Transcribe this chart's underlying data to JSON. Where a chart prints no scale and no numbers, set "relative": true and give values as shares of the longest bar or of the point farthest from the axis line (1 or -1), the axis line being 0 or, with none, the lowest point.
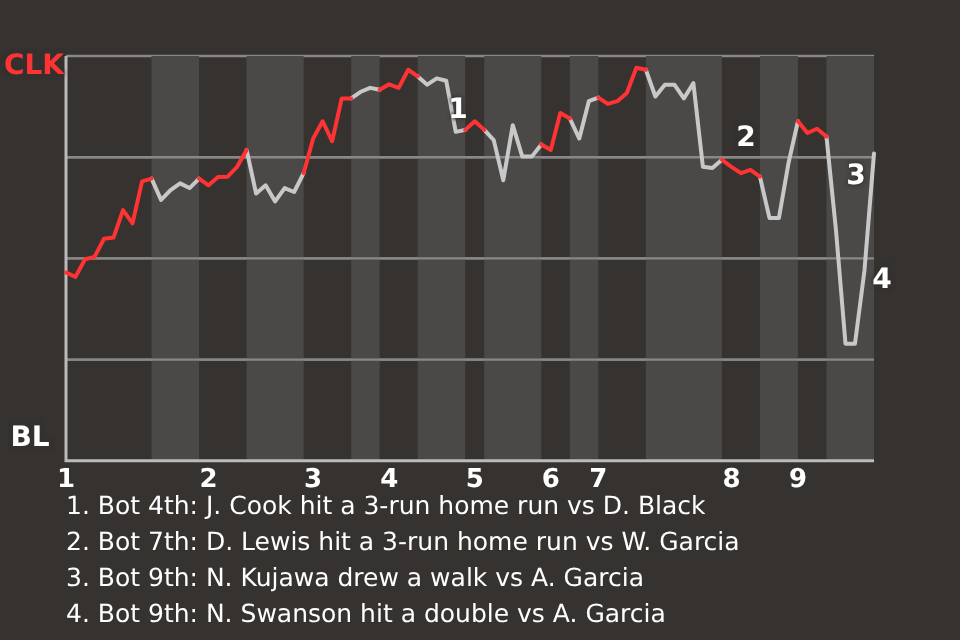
{
  "chart_data": {
    "type": "line",
    "relative": true,
    "categories": [
      "1",
      null,
      null,
      null,
      null,
      null,
      null,
      null,
      null,
      null,
      null,
      null,
      null,
      null,
      null,
      "2",
      null,
      null,
      null,
      null,
      null,
      null,
      null,
      null,
      null,
      null,
      "3",
      null,
      null,
      null,
      null,
      null,
      null,
      null,
      "4",
      null,
      null,
      null,
      null,
      null,
      null,
      null,
      null,
      "5",
      null,
      null,
      null,
      null,
      null,
      null,
      null,
      "6",
      null,
      null,
      null,
      null,
      "7",
      null,
      null,
      null,
      null,
      null,
      null,
      null,
      null,
      null,
      null,
      null,
      null,
      null,
      "8",
      null,
      null,
      null,
      null,
      null,
      null,
      "9",
      null,
      null,
      null,
      null,
      null,
      null,
      null,
      null
    ],
    "grid": "y",
    "legend": false,
    "marker": "none",
    "line_style": "solid",
    "series": [
      {
        "color": "#ff3333",
        "values": [
          0.479,
          0.468,
          0.513,
          0.519,
          0.565,
          0.568,
          0.638,
          0.604,
          0.711,
          0.718,
          null,
          null,
          null,
          null,
          0.718,
          0.701,
          0.722,
          0.723,
          0.748,
          0.791,
          null,
          null,
          null,
          null,
          null,
          0.732,
          0.82,
          0.864,
          0.813,
          0.922,
          0.922,
          null,
          null,
          0.944,
          0.958,
          0.949,
          0.995,
          0.978,
          null,
          null,
          null,
          null,
          0.842,
          0.864,
          0.842,
          null,
          null,
          null,
          null,
          null,
          0.805,
          0.791,
          0.885,
          0.871,
          null,
          null,
          0.924,
          0.908,
          0.915,
          0.936,
          1,
          0.995,
          null,
          null,
          null,
          null,
          null,
          null,
          null,
          0.766,
          0.748,
          0.732,
          0.74,
          0.723,
          null,
          null,
          null,
          0.864,
          0.834,
          0.845,
          0.825,
          null,
          null,
          null,
          null,
          null
        ]
      },
      {
        "color": "#c8c8c8",
        "values": [
          null,
          null,
          null,
          null,
          null,
          null,
          null,
          null,
          null,
          0.718,
          0.664,
          0.689,
          0.706,
          0.694,
          0.718,
          null,
          null,
          null,
          null,
          0.791,
          0.68,
          0.701,
          0.66,
          0.694,
          0.684,
          0.732,
          null,
          null,
          null,
          null,
          0.922,
          0.939,
          0.949,
          0.944,
          null,
          null,
          null,
          0.978,
          0.957,
          0.973,
          0.967,
          0.837,
          0.842,
          null,
          0.842,
          0.816,
          0.714,
          0.854,
          0.774,
          0.774,
          0.805,
          null,
          null,
          0.871,
          0.82,
          0.915,
          0.924,
          null,
          null,
          null,
          null,
          0.995,
          0.927,
          0.957,
          0.957,
          0.922,
          0.961,
          0.748,
          0.745,
          0.766,
          null,
          null,
          null,
          0.723,
          0.618,
          0.618,
          0.757,
          0.864,
          null,
          null,
          0.825,
          0.587,
          0.298,
          0.298,
          0.485,
          0.782
        ]
      }
    ],
    "annotations": [
      "CLK",
      "BL",
      "1",
      "2",
      "3",
      "4",
      "1. Bot 4th: J. Cook hit a 3-run home run vs D. Black",
      "2. Bot 7th: D. Lewis hit a 3-run home run vs W. Garcia",
      "3. Bot 9th: N. Kujawa drew a walk vs A. Garcia",
      "4. Bot 9th: N. Swanson hit a double vs A. Garcia"
    ]
  }
}
